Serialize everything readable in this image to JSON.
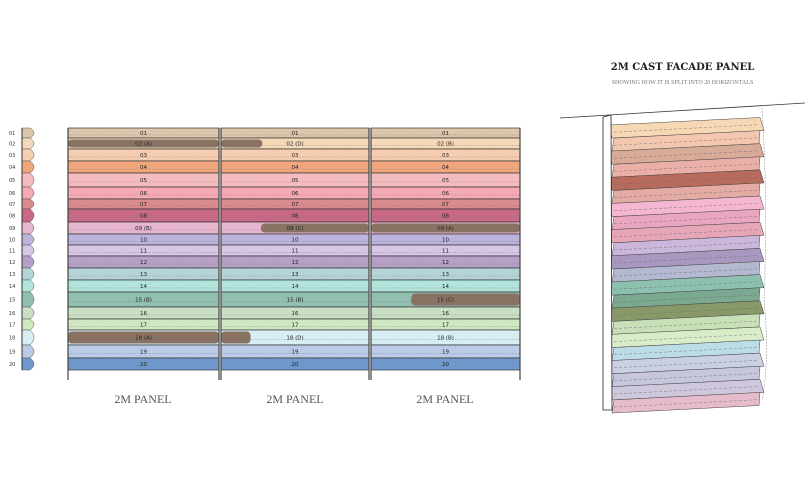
{
  "rows": [
    "01",
    "02",
    "03",
    "04",
    "05",
    "06",
    "07",
    "08",
    "09",
    "10",
    "11",
    "12",
    "13",
    "14",
    "15",
    "16",
    "17",
    "18",
    "19",
    "20"
  ],
  "row_colors": [
    "#dcc7ad",
    "#f4d9b8",
    "#f6cdb1",
    "#f0a77e",
    "#f5bcc0",
    "#f4a9b3",
    "#d98b8e",
    "#c86a85",
    "#e8b5cf",
    "#bcb4dc",
    "#d8c6e6",
    "#b6a0c8",
    "#b5d4d8",
    "#b2e4dc",
    "#91bfb0",
    "#c8dfc4",
    "#d0e8c2",
    "#d6eef4",
    "#b9cbe6",
    "#6f98cc"
  ],
  "insert_color": "#8a7263",
  "panels": [
    {
      "label": "2M PANEL",
      "variants": {
        "02": "(A)",
        "09": "(B)",
        "15": "(B)",
        "18": "(A)"
      }
    },
    {
      "label": "2M PANEL",
      "variants": {
        "02": "(D)",
        "09": "(C)",
        "15": "(B)",
        "18": "(D)"
      }
    },
    {
      "label": "2M PANEL",
      "variants": {
        "02": "(B)",
        "09": "(A)",
        "15": "(C)",
        "18": "(B)"
      }
    }
  ],
  "cast_panel": {
    "title": "2M CAST FACADE PANEL",
    "subtitle": "SHOWING HOW IT IS SPLIT INTO 20 HORIZONTALS"
  }
}
